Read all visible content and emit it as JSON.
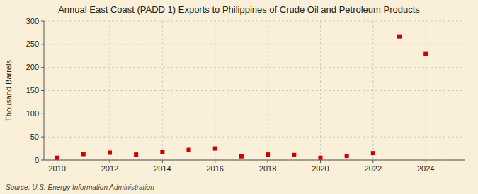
{
  "chart_data": {
    "type": "scatter",
    "title": "Annual East Coast (PADD 1) Exports to Philippines of Crude Oil and Petroleum Products",
    "ylabel": "Thousand Barrels",
    "annotation": "Source: U.S. Energy Information Administration",
    "x": [
      2010,
      2011,
      2012,
      2013,
      2014,
      2015,
      2016,
      2017,
      2018,
      2019,
      2020,
      2021,
      2022,
      2023,
      2024
    ],
    "values": [
      5,
      13,
      16,
      12,
      17,
      22,
      25,
      8,
      12,
      11,
      5,
      9,
      15,
      267,
      229
    ],
    "color": "#cc0000",
    "marker": "square",
    "grid": true,
    "xlim": [
      2009.5,
      2025.5
    ],
    "xticks": [
      2010,
      2012,
      2014,
      2016,
      2018,
      2020,
      2022,
      2024
    ],
    "ylim": [
      0,
      300
    ],
    "yticks": [
      0,
      50,
      100,
      150,
      200,
      250,
      300
    ]
  }
}
